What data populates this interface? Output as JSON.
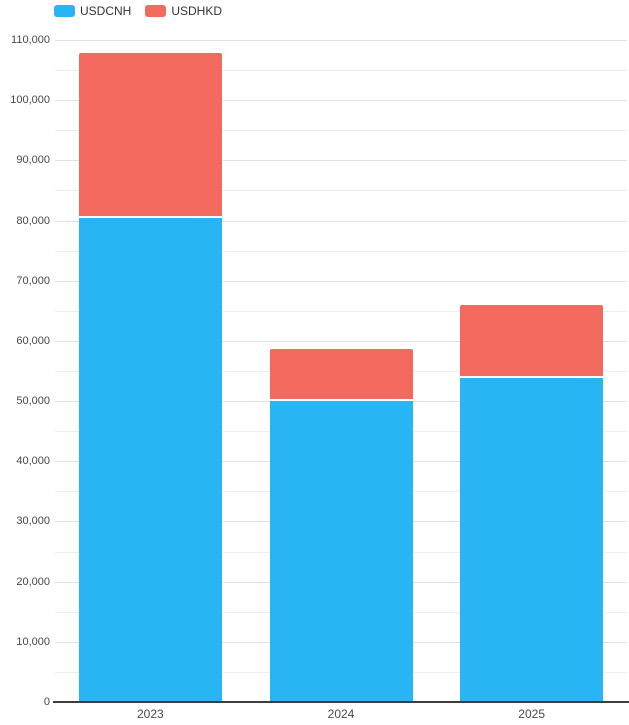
{
  "chart_data": {
    "type": "bar",
    "stacked": true,
    "title": "",
    "xlabel": "",
    "ylabel": "",
    "categories": [
      "2023",
      "2024",
      "2025"
    ],
    "series": [
      {
        "name": "USDCNH",
        "color": "#29b4f3",
        "values": [
          80400,
          50000,
          53800
        ]
      },
      {
        "name": "USDHKD",
        "color": "#f4695e",
        "values": [
          27400,
          8600,
          12200
        ]
      }
    ],
    "totals": [
      107800,
      58600,
      66000
    ],
    "ylim": [
      0,
      110000
    ],
    "ytick_interval": 10000,
    "minor_tick_interval": 5000,
    "yticklabels": [
      "0",
      "10,000",
      "20,000",
      "30,000",
      "40,000",
      "50,000",
      "60,000",
      "70,000",
      "80,000",
      "90,000",
      "100,000",
      "110,000"
    ],
    "grid": true,
    "legend_position": "top-left",
    "colors": {
      "gridline_major": "#e0e0e0",
      "gridline_minor": "#ededed",
      "axis_line": "#3d3d3d",
      "tick_label": "#474747",
      "legend_text": "#333333",
      "background": "#ffffff"
    }
  }
}
